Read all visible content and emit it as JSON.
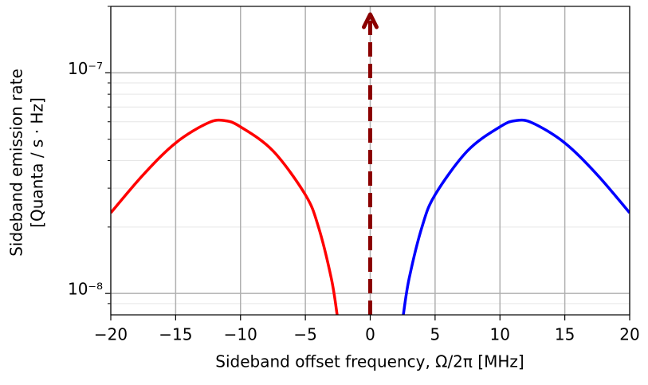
{
  "chart_data": {
    "type": "line",
    "xlabel": "Sideband offset frequency, Ω/2π [MHz]",
    "ylabel": [
      "Sideband emission rate",
      "[Quanta / s · Hz]"
    ],
    "xlim": [
      -20,
      20
    ],
    "ylim": [
      8e-09,
      2e-07
    ],
    "log_y": true,
    "grid": true,
    "xticks": [
      {
        "value": -20,
        "label": "−20"
      },
      {
        "value": -15,
        "label": "−15"
      },
      {
        "value": -10,
        "label": "−10"
      },
      {
        "value": -5,
        "label": "−5"
      },
      0,
      5,
      10,
      15,
      20
    ],
    "yticks": [
      {
        "value": 1e-08,
        "label": "10⁻⁸"
      },
      {
        "value": 1e-07,
        "label": "10⁻⁷"
      }
    ],
    "yminor": [
      9e-09,
      2e-08,
      3e-08,
      4e-08,
      5e-08,
      6e-08,
      7e-08,
      8e-08,
      9e-08,
      2e-07
    ],
    "series": [
      {
        "color": "#ff0000",
        "x": [
          -20,
          -17.5,
          -15,
          -12.5,
          -11.2,
          -10,
          -7.5,
          -5,
          -4,
          -3,
          -2.55
        ],
        "values": [
          2.32e-08,
          3.45e-08,
          4.81e-08,
          5.93e-08,
          6.07e-08,
          5.69e-08,
          4.43e-08,
          2.8e-08,
          2.01e-08,
          1.17e-08,
          8e-09
        ]
      },
      {
        "color": "#0000ff",
        "x": [
          2.55,
          3,
          4,
          5,
          7.5,
          10,
          11.2,
          12.5,
          15,
          17.5,
          20
        ],
        "values": [
          8e-09,
          1.17e-08,
          2.01e-08,
          2.8e-08,
          4.43e-08,
          5.69e-08,
          6.07e-08,
          5.93e-08,
          4.81e-08,
          3.45e-08,
          2.32e-08
        ]
      }
    ],
    "arrows": [
      {
        "x": 0,
        "color": "#8b0000"
      }
    ]
  }
}
